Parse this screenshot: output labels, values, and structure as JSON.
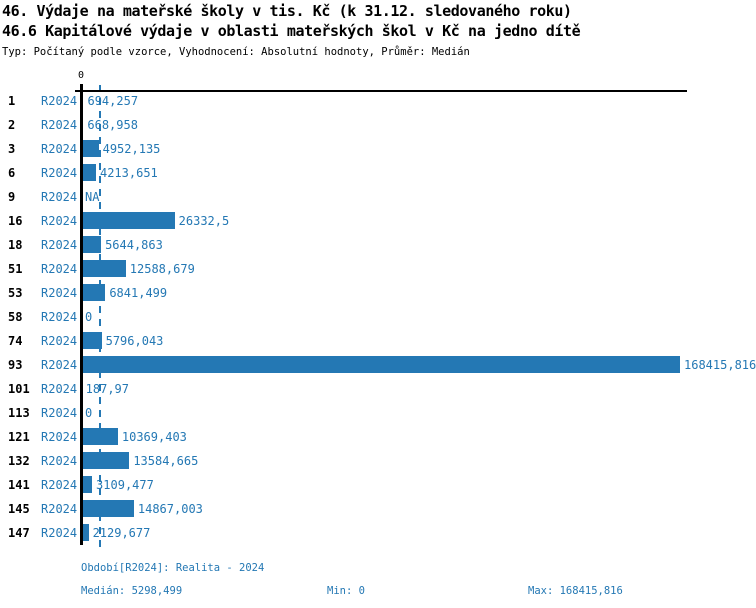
{
  "header": {
    "title_line1": "46. Výdaje na mateřské školy v tis. Kč (k 31.12. sledovaného roku)",
    "title_line2": "46.6 Kapitálové výdaje v oblasti mateřských škol v Kč na jedno dítě",
    "subtitle": "Typ: Počítaný podle vzorce, Vyhodnocení: Absolutní hodnoty, Průměr: Medián"
  },
  "axis": {
    "zero_label": "0"
  },
  "footer": {
    "period_line": "Období[R2024]: Realita - 2024",
    "median_text": "Medián: 5298,499",
    "min_text": "Min: 0",
    "max_text": "Max: 168415,816"
  },
  "colors": {
    "accent": "#2478b4",
    "axis": "#000000"
  },
  "chart_data": {
    "type": "bar",
    "orientation": "horizontal",
    "title": "46. Výdaje na mateřské školy v tis. Kč (k 31.12. sledovaného roku)",
    "subtitle": "46.6 Kapitálové výdaje v oblasti mateřských škol v Kč na jedno dítě",
    "series_label": "R2024",
    "categories": [
      "1",
      "2",
      "3",
      "6",
      "9",
      "16",
      "18",
      "51",
      "53",
      "58",
      "74",
      "93",
      "101",
      "113",
      "121",
      "132",
      "141",
      "145",
      "147"
    ],
    "values": [
      694.257,
      668.958,
      4952.135,
      4213.651,
      null,
      26332.5,
      5644.863,
      12588.679,
      6841.499,
      0,
      5796.043,
      168415.816,
      187.97,
      0,
      10369.403,
      13584.665,
      3109.477,
      14867.003,
      2129.677
    ],
    "value_labels": [
      "694,257",
      "668,958",
      "4952,135",
      "4213,651",
      "NA",
      "26332,5",
      "5644,863",
      "12588,679",
      "6841,499",
      "0",
      "5796,043",
      "168415,816",
      "187,97",
      "0",
      "10369,403",
      "13584,665",
      "3109,477",
      "14867,003",
      "2129,677"
    ],
    "xlim": [
      0,
      168415.816
    ],
    "grid": false,
    "legend": false,
    "median": 5298.499,
    "min": 0,
    "max": 168415.816
  }
}
